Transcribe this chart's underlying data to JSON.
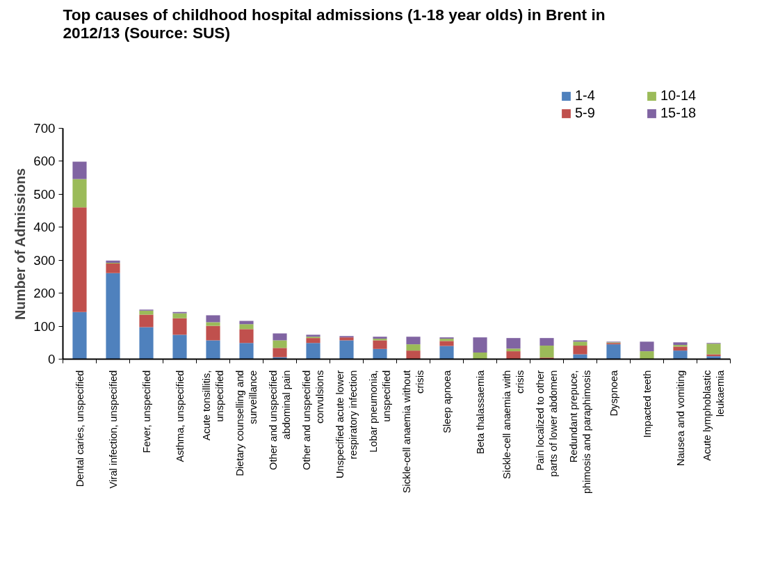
{
  "chart_data": {
    "type": "bar",
    "stacked": true,
    "title": "Top causes of childhood hospital admissions (1-18 year olds) in Brent in\n2012/13  (Source: SUS)",
    "ylabel": "Number of Admissions",
    "categories": [
      "Dental caries, unspecified",
      "Viral infection, unspecified",
      "Fever, unspecified",
      "Asthma, unspecified",
      "Acute tonsillitis,\nunspecified",
      "Dietary counselling and\nsurveillance",
      "Other and unspecified\nabdominal pain",
      "Other and unspecified\nconvulsions",
      "Unspecified acute lower\nrespiratory infection",
      "Lobar pneumonia,\nunspecified",
      "Sickle-cell anaemia without\ncrisis",
      "Sleep apnoea",
      "Beta thalassaemia",
      "Sickle-cell anaemia with\ncrisis",
      "Pain localized to other\nparts of lower abdomen",
      "Redundant prepuce,\nphimosis and paraphimosis",
      "Dyspnoea",
      "Impacted teeth",
      "Nausea and vomiting",
      "Acute lymphoblastic\nleukaemia"
    ],
    "series": [
      {
        "name": "1-4",
        "color": "#4f81bd",
        "values": [
          143,
          261,
          97,
          74,
          57,
          49,
          6,
          49,
          57,
          31,
          0,
          40,
          0,
          0,
          0,
          15,
          45,
          0,
          26,
          9
        ]
      },
      {
        "name": "5-9",
        "color": "#c0504d",
        "values": [
          317,
          29,
          38,
          50,
          44,
          42,
          28,
          15,
          9,
          26,
          26,
          15,
          0,
          24,
          5,
          26,
          4,
          0,
          12,
          6
        ]
      },
      {
        "name": "10-14",
        "color": "#9bbb59",
        "values": [
          86,
          2,
          12,
          15,
          11,
          15,
          23,
          4,
          0,
          5,
          19,
          7,
          20,
          8,
          36,
          12,
          2,
          24,
          5,
          32
        ]
      },
      {
        "name": "15-18",
        "color": "#8064a2",
        "values": [
          53,
          7,
          3,
          4,
          21,
          10,
          21,
          6,
          4,
          6,
          23,
          4,
          46,
          32,
          23,
          4,
          2,
          29,
          8,
          2
        ]
      }
    ],
    "ylim": [
      0,
      700
    ],
    "yticks": [
      0,
      100,
      200,
      300,
      400,
      500,
      600,
      700
    ],
    "grid": false,
    "legend": "top right"
  }
}
